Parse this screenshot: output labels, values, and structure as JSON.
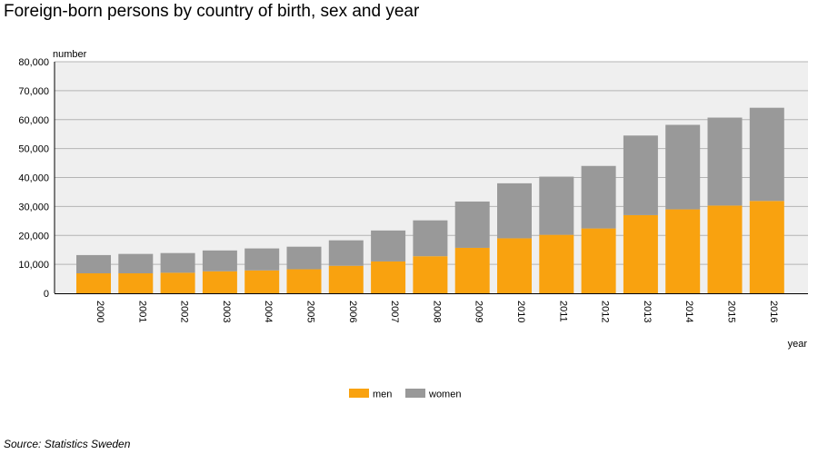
{
  "chart_data": {
    "type": "bar",
    "stacked": true,
    "title": "Foreign-born persons by country of birth, sex and year",
    "ylabel": "number",
    "xlabel": "year",
    "ylim": [
      0,
      80000
    ],
    "yticks": [
      "0",
      "10,000",
      "20,000",
      "30,000",
      "40,000",
      "50,000",
      "60,000",
      "70,000",
      "80,000"
    ],
    "categories": [
      "2000",
      "2001",
      "2002",
      "2003",
      "2004",
      "2005",
      "2006",
      "2007",
      "2008",
      "2009",
      "2010",
      "2011",
      "2012",
      "2013",
      "2014",
      "2015",
      "2016"
    ],
    "series": [
      {
        "name": "men",
        "color": "#f9a20f",
        "values": [
          6900,
          6900,
          7100,
          7600,
          7900,
          8300,
          9500,
          11000,
          12800,
          15700,
          19000,
          20200,
          22400,
          27000,
          29000,
          30300,
          31900
        ]
      },
      {
        "name": "women",
        "color": "#999999",
        "values": [
          6300,
          6700,
          6800,
          7200,
          7600,
          7800,
          8800,
          10700,
          12400,
          16000,
          19000,
          20100,
          21600,
          27500,
          29200,
          30400,
          32200
        ]
      }
    ],
    "legend_position": "bottom",
    "grid": true,
    "source": "Source: Statistics Sweden"
  }
}
